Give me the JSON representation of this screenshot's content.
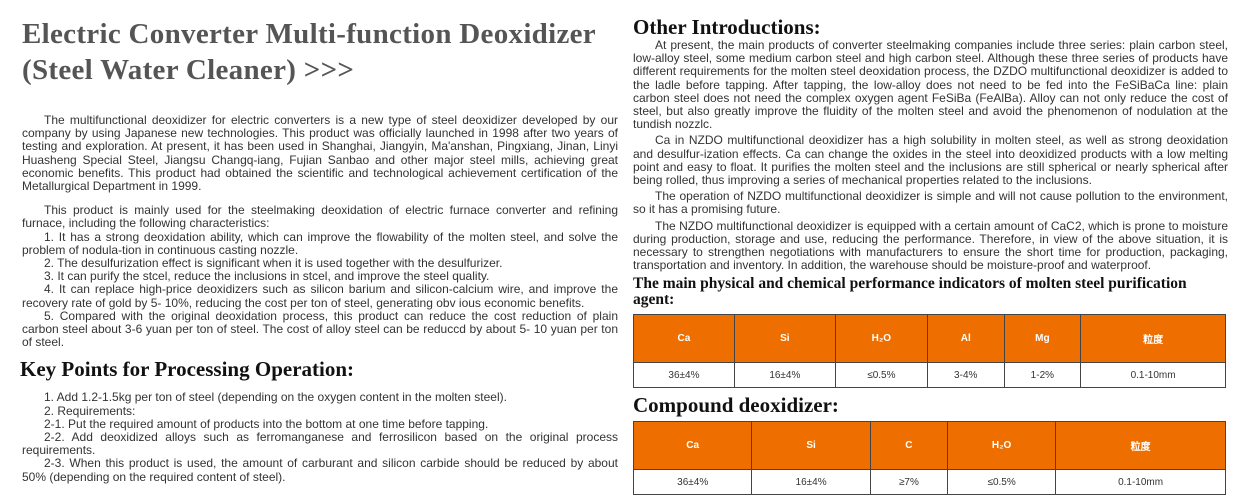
{
  "title": "Electric Converter Multi-function Deoxidizer (Steel Water Cleaner) >>>",
  "intro": [
    "The multifunctional deoxidizer for electric converters is a new type of steel deoxidizer developed by our company by using Japanese new technologies. This product was officially launched in 1998 after two years of testing and exploration. At present, it has been used in Shanghai, Jiangyin, Ma'anshan, Pingxiang, Jinan, Linyi Huasheng Special Steel, Jiangsu Changq-iang, Fujian Sanbao and other major steel mills, achieving great economic benefits. This product had obtained the scientific and technological achievement certification of the Metallurgical Department in 1999.",
    "This product is mainly used for the steelmaking deoxidation of electric furnace converter and refining furnace, including the following characteristics:",
    "1. It has a strong deoxidation ability, which can improve the flowability of the molten steel, and solve the problem of nodula-tion in continuous casting nozzle.",
    "2. The desulfurization effect is significant when it is used together with the desulfurizer.",
    "3. It can purify the stcel, reduce the inclusions in stcel, and improve the steel quality.",
    "4. It can replace high-price deoxidizers such as silicon barium and silicon-calcium wire, and improve the recovery rate of gold by 5- 10%, reducing the cost per ton of steel, generating obv ious economic benefits.",
    "5. Compared with the original deoxidation process, this product can reduce the cost reduction of plain carbon steel about 3-6 yuan per ton of steel. The cost of alloy steel can be reduccd by about 5- 10 yuan per ton of steel."
  ],
  "key_points": {
    "heading": "Key Points for Processing Operation:",
    "lines": [
      "1. Add 1.2-1.5kg per ton of steel (depending on the oxygen content in the molten steel).",
      "2. Requirements:",
      "2-1. Put the required amount of products into the bottom at one time before tapping.",
      "2-2. Add deoxidized alloys such as ferromanganese and ferrosilicon based on the original process requirements.",
      "2-3. When this product is used, the amount of carburant and silicon carbide should be reduced by about 50% (depending on the required content of steel)."
    ]
  },
  "other": {
    "heading": "Other Introductions:",
    "paras": [
      "At present, the main products of converter steelmaking companies include three series: plain carbon steel, low-alloy steel, some medium carbon steel and high carbon steel. Although these three series of products have different requirements for the molten steel deoxidation process, the DZDO multifunctional deoxidizer is added to the ladle before tapping. After tapping, the low-alloy does not need to be fed into the FeSiBaCa line: plain carbon steel does not need the complex oxygen agent FeSiBa (FeAlBa). Alloy can not only reduce the cost of steel, but also greatly improve the fluidity of the molten steel and avoid the phenomenon of nodulation at the tundish nozzlc.",
      "Ca in NZDO multifunctional deoxidizer has a high solubility in molten steel, as well as strong deoxidation and desulfur-ization effects. Ca can change the oxides in the steel into deoxidized products with a low melting point and easy to float. It purifies the molten steel and the inclusions are still spherical or nearly spherical after being rolled, thus improving a series of mechanical properties related to the inclusions.",
      "The operation of NZDO multifunctional deoxidizer is simple and will not cause pollution to the environment, so it has a promising future.",
      "The NZDO multifunctional deoxidizer is equipped with a certain amount of CaC2, which is prone to moisture during production, storage and use, reducing the performance. Therefore, in view of the above situation, it is necessary to strengthen negotiations with manufacturers to ensure the short time for production, packaging, transportation and inventory. In addition, the warehouse should be moisture-proof and waterproof."
    ]
  },
  "table1": {
    "heading": "The main physical and chemical performance indicators of molten steel purification agent:",
    "headers": [
      "Ca",
      "Si",
      "H₂O",
      "Al",
      "Mg",
      "粒度"
    ],
    "values": [
      "36±4%",
      "16±4%",
      "≤0.5%",
      "3-4%",
      "1-2%",
      "0.1-10mm"
    ]
  },
  "table2": {
    "heading": "Compound deoxidizer:",
    "headers": [
      "Ca",
      "Si",
      "C",
      "H₂O",
      "粒度"
    ],
    "values": [
      "36±4%",
      "16±4%",
      "≥7%",
      "≤0.5%",
      "0.1-10mm"
    ]
  },
  "colors": {
    "table_header": "#ee6f00",
    "title": "#555555"
  }
}
